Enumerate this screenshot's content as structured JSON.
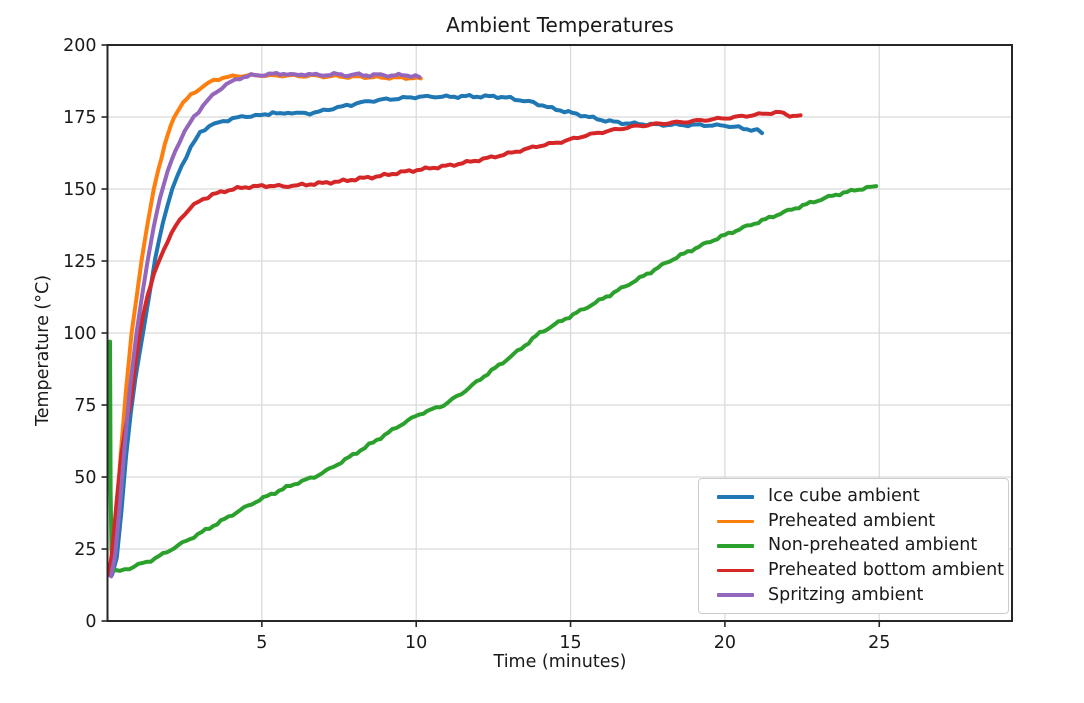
{
  "chart_data": {
    "type": "line",
    "title": "Ambient Temperatures",
    "xlabel": "Time (minutes)",
    "ylabel": "Temperature (°C)",
    "xlim": [
      0,
      29.3
    ],
    "ylim": [
      0,
      200
    ],
    "xticks": [
      5,
      10,
      15,
      20,
      25
    ],
    "yticks": [
      0,
      25,
      50,
      75,
      100,
      125,
      150,
      175,
      200
    ],
    "grid": true,
    "legend_position": "lower right",
    "colors": {
      "axis": "#262626",
      "grid": "#d9d9d9",
      "background": "#ffffff",
      "legend_border": "#cccccc"
    },
    "series": [
      {
        "name": "Ice cube ambient",
        "color": "#1f77b4",
        "points": [
          [
            0.15,
            16
          ],
          [
            0.3,
            22
          ],
          [
            0.45,
            38
          ],
          [
            0.6,
            57
          ],
          [
            0.75,
            72
          ],
          [
            0.9,
            84
          ],
          [
            1.15,
            100
          ],
          [
            1.35,
            113
          ],
          [
            1.55,
            126
          ],
          [
            1.8,
            139
          ],
          [
            2.1,
            150
          ],
          [
            2.4,
            158
          ],
          [
            2.7,
            164.5
          ],
          [
            3.0,
            169.5
          ],
          [
            3.3,
            172
          ],
          [
            3.6,
            173
          ],
          [
            3.9,
            174
          ],
          [
            4.2,
            174.8
          ],
          [
            4.5,
            175.3
          ],
          [
            4.8,
            175.4
          ],
          [
            5.1,
            175.8
          ],
          [
            5.35,
            176.6
          ],
          [
            5.6,
            175.9
          ],
          [
            5.85,
            176.6
          ],
          [
            6.1,
            176.4
          ],
          [
            6.4,
            176.2
          ],
          [
            6.7,
            176.5
          ],
          [
            7.0,
            177.2
          ],
          [
            7.3,
            178
          ],
          [
            7.6,
            178.6
          ],
          [
            7.9,
            179.3
          ],
          [
            8.2,
            180
          ],
          [
            8.5,
            180.5
          ],
          [
            8.9,
            181
          ],
          [
            9.3,
            181.3
          ],
          [
            9.7,
            181.7
          ],
          [
            10.1,
            182
          ],
          [
            10.6,
            182.1
          ],
          [
            11.1,
            182
          ],
          [
            11.6,
            182.2
          ],
          [
            12.1,
            182.1
          ],
          [
            12.5,
            182.2
          ],
          [
            12.9,
            181.8
          ],
          [
            13.2,
            181.2
          ],
          [
            13.5,
            180.6
          ],
          [
            13.8,
            180
          ],
          [
            14.1,
            179
          ],
          [
            14.4,
            178
          ],
          [
            14.8,
            177
          ],
          [
            15.2,
            176
          ],
          [
            15.6,
            175
          ],
          [
            16.0,
            174
          ],
          [
            16.4,
            173.3
          ],
          [
            16.8,
            172.8
          ],
          [
            17.2,
            172.6
          ],
          [
            17.6,
            172.4
          ],
          [
            18.0,
            172.3
          ],
          [
            18.4,
            172.3
          ],
          [
            18.8,
            172.2
          ],
          [
            19.2,
            172.2
          ],
          [
            19.6,
            172.1
          ],
          [
            20.0,
            172
          ],
          [
            20.3,
            171.6
          ],
          [
            20.6,
            171
          ],
          [
            20.85,
            170.6
          ],
          [
            21.05,
            170.4
          ],
          [
            21.2,
            169.4
          ]
        ]
      },
      {
        "name": "Preheated ambient",
        "color": "#ff7f0e",
        "points": [
          [
            0.1,
            17
          ],
          [
            0.2,
            26
          ],
          [
            0.33,
            44
          ],
          [
            0.46,
            62
          ],
          [
            0.6,
            80
          ],
          [
            0.78,
            100
          ],
          [
            0.95,
            113
          ],
          [
            1.1,
            125
          ],
          [
            1.3,
            138
          ],
          [
            1.5,
            150
          ],
          [
            1.65,
            157
          ],
          [
            1.85,
            165
          ],
          [
            2.05,
            172
          ],
          [
            2.25,
            177
          ],
          [
            2.45,
            180
          ],
          [
            2.7,
            182.5
          ],
          [
            3.0,
            185
          ],
          [
            3.3,
            187
          ],
          [
            3.6,
            188.3
          ],
          [
            3.9,
            188.9
          ],
          [
            4.2,
            189.2
          ],
          [
            4.6,
            189.4
          ],
          [
            5.0,
            189.5
          ],
          [
            5.4,
            189.3
          ],
          [
            5.8,
            189.5
          ],
          [
            6.2,
            189.2
          ],
          [
            6.6,
            189.4
          ],
          [
            7.0,
            189.1
          ],
          [
            7.4,
            189.2
          ],
          [
            7.8,
            188.9
          ],
          [
            8.2,
            189
          ],
          [
            8.6,
            188.8
          ],
          [
            9.0,
            188.7
          ],
          [
            9.4,
            188.6
          ],
          [
            9.8,
            188.6
          ],
          [
            10.15,
            188.4
          ]
        ]
      },
      {
        "name": "Non-preheated ambient",
        "color": "#2ca02c",
        "points": [
          [
            0.08,
            97
          ],
          [
            0.09,
            75
          ],
          [
            0.1,
            45
          ],
          [
            0.13,
            25
          ],
          [
            0.18,
            17.5
          ],
          [
            0.4,
            17.3
          ],
          [
            0.7,
            18.3
          ],
          [
            1.0,
            19.5
          ],
          [
            1.4,
            21
          ],
          [
            1.8,
            23.2
          ],
          [
            2.3,
            26.3
          ],
          [
            2.8,
            29.3
          ],
          [
            3.3,
            32.3
          ],
          [
            3.8,
            35.4
          ],
          [
            4.3,
            38.5
          ],
          [
            4.8,
            41.4
          ],
          [
            5.3,
            44
          ],
          [
            5.8,
            46.4
          ],
          [
            6.3,
            48.6
          ],
          [
            6.7,
            50
          ],
          [
            7.2,
            52.8
          ],
          [
            7.7,
            56
          ],
          [
            8.2,
            59.3
          ],
          [
            8.6,
            62
          ],
          [
            9.1,
            65.4
          ],
          [
            9.6,
            68.8
          ],
          [
            10.1,
            71.8
          ],
          [
            10.9,
            75
          ],
          [
            11.6,
            80
          ],
          [
            12.2,
            85
          ],
          [
            12.8,
            89.7
          ],
          [
            13.4,
            94.6
          ],
          [
            14.0,
            100
          ],
          [
            14.6,
            103.6
          ],
          [
            15.2,
            107
          ],
          [
            15.8,
            110.5
          ],
          [
            16.4,
            114
          ],
          [
            17.0,
            117.6
          ],
          [
            17.6,
            121.2
          ],
          [
            18.2,
            125
          ],
          [
            18.8,
            128.2
          ],
          [
            19.4,
            131.2
          ],
          [
            20.0,
            134
          ],
          [
            20.6,
            136.6
          ],
          [
            21.2,
            139
          ],
          [
            21.8,
            141.5
          ],
          [
            22.4,
            143.8
          ],
          [
            23.0,
            146
          ],
          [
            23.6,
            148
          ],
          [
            24.2,
            149.6
          ],
          [
            24.6,
            150.4
          ],
          [
            24.9,
            151
          ]
        ]
      },
      {
        "name": "Preheated bottom ambient",
        "color": "#d62728",
        "points": [
          [
            0.05,
            16
          ],
          [
            0.15,
            24
          ],
          [
            0.3,
            42
          ],
          [
            0.45,
            58
          ],
          [
            0.6,
            68
          ],
          [
            0.75,
            76
          ],
          [
            0.9,
            89
          ],
          [
            1.02,
            98
          ],
          [
            1.15,
            106
          ],
          [
            1.3,
            113
          ],
          [
            1.5,
            120
          ],
          [
            1.7,
            126
          ],
          [
            1.95,
            132
          ],
          [
            2.2,
            137
          ],
          [
            2.5,
            141.5
          ],
          [
            2.8,
            144.5
          ],
          [
            3.1,
            146.5
          ],
          [
            3.4,
            148
          ],
          [
            3.8,
            149.3
          ],
          [
            4.2,
            150.2
          ],
          [
            4.6,
            150.8
          ],
          [
            5.0,
            151
          ],
          [
            5.4,
            151.2
          ],
          [
            5.7,
            150.8
          ],
          [
            6.0,
            151.2
          ],
          [
            6.3,
            151.4
          ],
          [
            6.7,
            151.8
          ],
          [
            7.1,
            152.2
          ],
          [
            7.5,
            152.6
          ],
          [
            7.9,
            153.2
          ],
          [
            8.3,
            153.8
          ],
          [
            8.7,
            154.3
          ],
          [
            9.1,
            155
          ],
          [
            9.5,
            155.8
          ],
          [
            9.9,
            156.4
          ],
          [
            10.3,
            157
          ],
          [
            10.7,
            157.6
          ],
          [
            11.1,
            158.2
          ],
          [
            11.5,
            159
          ],
          [
            11.9,
            159.8
          ],
          [
            12.3,
            160.7
          ],
          [
            12.7,
            161.6
          ],
          [
            13.1,
            162.6
          ],
          [
            13.5,
            163.7
          ],
          [
            13.9,
            164.8
          ],
          [
            14.3,
            165.6
          ],
          [
            14.7,
            166.4
          ],
          [
            15.1,
            167.5
          ],
          [
            15.5,
            168.6
          ],
          [
            15.9,
            169.5
          ],
          [
            16.3,
            170.3
          ],
          [
            16.7,
            171.1
          ],
          [
            17.1,
            171.8
          ],
          [
            17.5,
            172.2
          ],
          [
            17.9,
            172.7
          ],
          [
            18.3,
            173
          ],
          [
            18.7,
            173.3
          ],
          [
            19.1,
            173.7
          ],
          [
            19.5,
            174.1
          ],
          [
            19.9,
            174.5
          ],
          [
            20.3,
            174.9
          ],
          [
            20.7,
            175.4
          ],
          [
            21.1,
            175.9
          ],
          [
            21.5,
            176.4
          ],
          [
            21.8,
            176.6
          ],
          [
            22.0,
            175.8
          ],
          [
            22.2,
            175.4
          ],
          [
            22.45,
            175.6
          ]
        ]
      },
      {
        "name": "Spritzing ambient",
        "color": "#9467bd",
        "points": [
          [
            0.12,
            15.5
          ],
          [
            0.25,
            23
          ],
          [
            0.4,
            40
          ],
          [
            0.55,
            60
          ],
          [
            0.72,
            80
          ],
          [
            0.94,
            100
          ],
          [
            1.12,
            113
          ],
          [
            1.3,
            125
          ],
          [
            1.5,
            137
          ],
          [
            1.7,
            147
          ],
          [
            1.95,
            156
          ],
          [
            2.2,
            163.5
          ],
          [
            2.5,
            170
          ],
          [
            2.8,
            175
          ],
          [
            3.1,
            179
          ],
          [
            3.4,
            182.5
          ],
          [
            3.7,
            185.2
          ],
          [
            4.0,
            187.2
          ],
          [
            4.3,
            188.6
          ],
          [
            4.65,
            189.4
          ],
          [
            5.0,
            189.6
          ],
          [
            5.35,
            189.9
          ],
          [
            5.7,
            190.1
          ],
          [
            6.05,
            189.5
          ],
          [
            6.4,
            189.9
          ],
          [
            6.75,
            189.6
          ],
          [
            7.1,
            189.6
          ],
          [
            7.45,
            189.9
          ],
          [
            7.8,
            189.4
          ],
          [
            8.15,
            189.8
          ],
          [
            8.5,
            189.4
          ],
          [
            8.85,
            189.7
          ],
          [
            9.2,
            189.3
          ],
          [
            9.55,
            189.6
          ],
          [
            9.85,
            189.3
          ],
          [
            10.1,
            188.9
          ]
        ]
      }
    ]
  }
}
